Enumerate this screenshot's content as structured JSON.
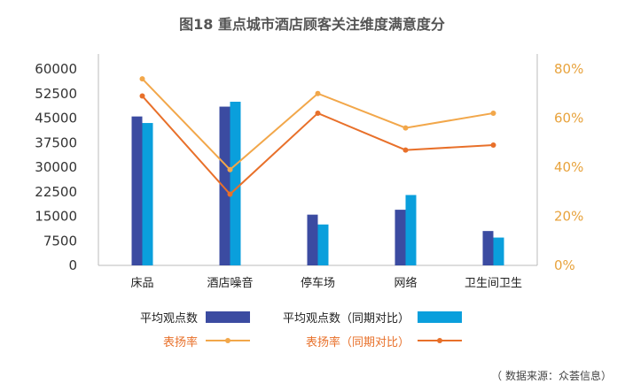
{
  "chart_data": {
    "type": "bar",
    "title": "图18 重点城市酒店顾客关注维度满意度分",
    "categories": [
      "床品",
      "酒店噪音",
      "停车场",
      "网络",
      "卫生间卫生"
    ],
    "series": [
      {
        "name": "平均观点数",
        "kind": "bar",
        "axis": "left",
        "color": "#3b4ba1",
        "values": [
          45500,
          48500,
          15500,
          17000,
          10500
        ]
      },
      {
        "name": "平均观点数（同期对比）",
        "kind": "bar",
        "axis": "left",
        "color": "#0a9fdc",
        "values": [
          43500,
          50000,
          12500,
          21500,
          8500
        ]
      },
      {
        "name": "表扬率",
        "kind": "line",
        "axis": "right",
        "color": "#f2a74a",
        "values": [
          0.76,
          0.39,
          0.7,
          0.56,
          0.62
        ]
      },
      {
        "name": "表扬率（同期对比）",
        "kind": "line",
        "axis": "right",
        "color": "#e8702a",
        "values": [
          0.69,
          0.29,
          0.62,
          0.47,
          0.49
        ]
      }
    ],
    "y_left": {
      "ylim": [
        0,
        60000
      ],
      "ticks": [
        "60000",
        "52500",
        "45000",
        "37500",
        "30000",
        "22500",
        "15000",
        "7500",
        "0"
      ]
    },
    "y_right": {
      "ylim": [
        0,
        0.8
      ],
      "ticks": [
        "80%",
        "60%",
        "40%",
        "20%",
        "0%"
      ]
    },
    "xlabel": "",
    "ylabel": "",
    "grid": false,
    "legend_position": "bottom"
  },
  "source": "（ 数据来源：众荟信息）"
}
